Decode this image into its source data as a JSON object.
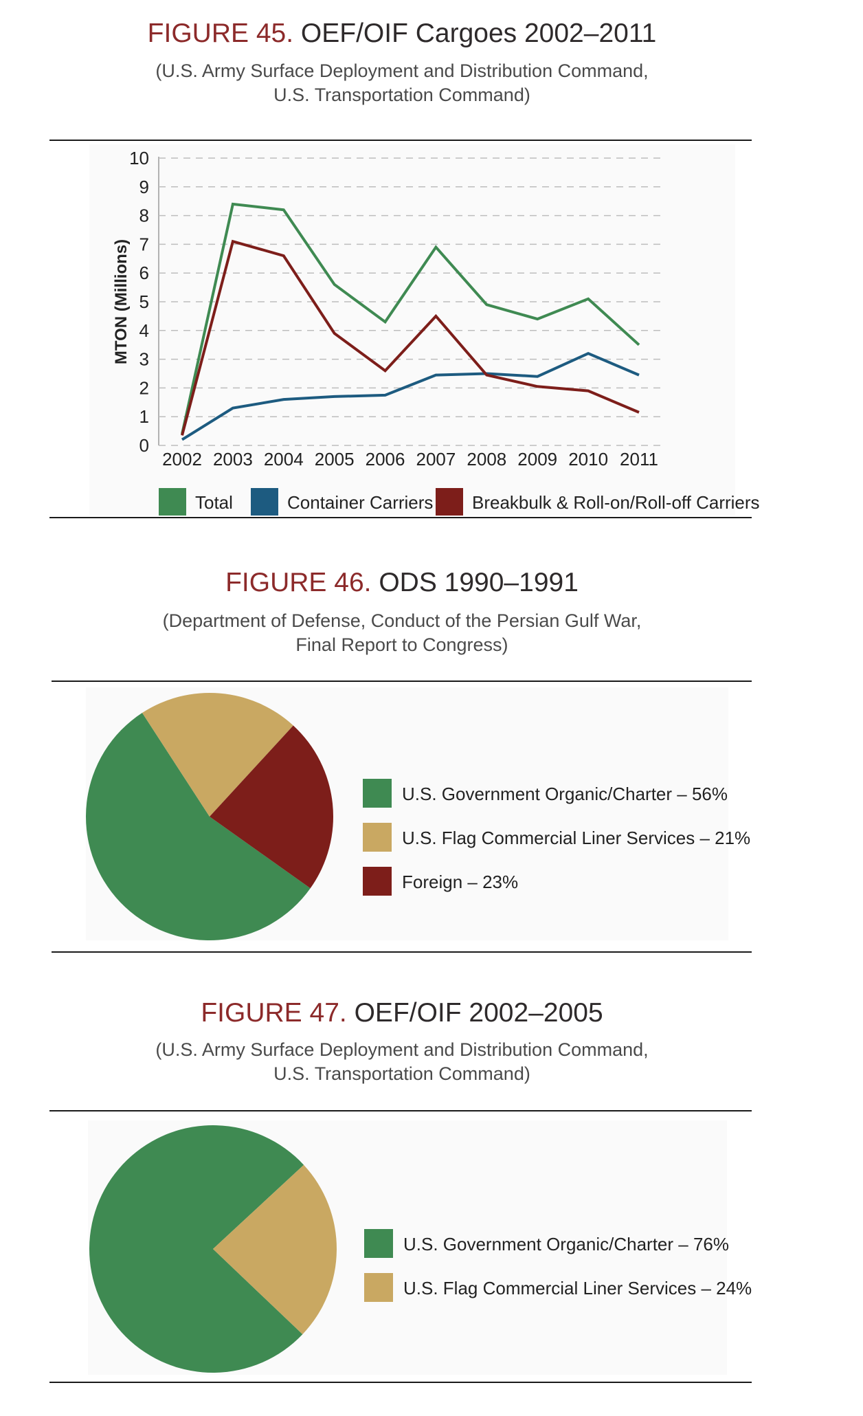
{
  "figures": [
    {
      "number": "FIGURE 45.",
      "title": "OEF/OIF Cargoes 2002–2011",
      "source_line1": "(U.S. Army Surface Deployment and Distribution Command,",
      "source_line2": "U.S. Transportation Command)"
    },
    {
      "number": "FIGURE 46.",
      "title": "ODS 1990–1991",
      "source_line1": "(Department of Defense, Conduct of the Persian Gulf War,",
      "source_line2": "Final Report to Congress)"
    },
    {
      "number": "FIGURE 47.",
      "title": "OEF/OIF 2002–2005",
      "source_line1": "(U.S. Army Surface Deployment and Distribution Command,",
      "source_line2": "U.S. Transportation Command)"
    }
  ],
  "chart_data": [
    {
      "type": "line",
      "title": "OEF/OIF Cargoes 2002–2011",
      "xlabel": "",
      "ylabel": "MTON (Millions)",
      "ylim": [
        0,
        10
      ],
      "yticks": [
        "0",
        "1",
        "2",
        "3",
        "4",
        "5",
        "6",
        "7",
        "8",
        "9",
        "10"
      ],
      "grid": true,
      "legend_position": "bottom",
      "x": [
        "2002",
        "2003",
        "2004",
        "2005",
        "2006",
        "2007",
        "2008",
        "2009",
        "2010",
        "2011"
      ],
      "series": [
        {
          "name": "Total",
          "color": "#3f8a52",
          "values": [
            0.4,
            8.4,
            8.2,
            5.6,
            4.3,
            6.9,
            4.9,
            4.4,
            5.1,
            3.5
          ]
        },
        {
          "name": "Container Carriers",
          "color": "#1d5b80",
          "values": [
            0.2,
            1.3,
            1.6,
            1.7,
            1.75,
            2.45,
            2.5,
            2.4,
            3.2,
            2.45
          ]
        },
        {
          "name": "Breakbulk & Roll-on/Roll-off Carriers",
          "color": "#7d1e1a",
          "values": [
            0.35,
            7.1,
            6.6,
            3.9,
            2.6,
            4.5,
            2.45,
            2.05,
            1.9,
            1.15
          ]
        }
      ]
    },
    {
      "type": "pie",
      "title": "ODS 1990–1991",
      "slices": [
        {
          "label": "U.S. Government Organic/Charter – 56%",
          "value": 56,
          "color": "#3f8a52"
        },
        {
          "label": "U.S. Flag Commercial Liner Services – 21%",
          "value": 21,
          "color": "#c9a862"
        },
        {
          "label": "Foreign – 23%",
          "value": 23,
          "color": "#7d1e1a"
        }
      ]
    },
    {
      "type": "pie",
      "title": "OEF/OIF 2002–2005",
      "slices": [
        {
          "label": "U.S. Government Organic/Charter – 76%",
          "value": 76,
          "color": "#3f8a52"
        },
        {
          "label": "U.S. Flag Commercial Liner Services – 24%",
          "value": 24,
          "color": "#c9a862"
        }
      ]
    }
  ]
}
